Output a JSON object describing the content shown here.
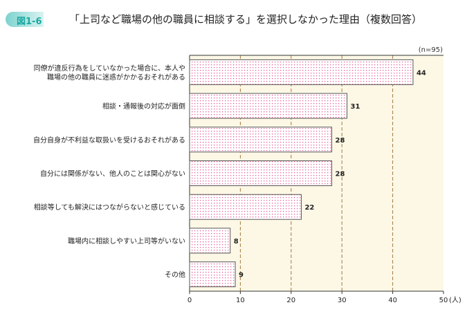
{
  "figure_label": "図1-6",
  "chart_data": {
    "type": "bar",
    "orientation": "horizontal",
    "title": "「上司など職場の他の職員に相談する」を選択しなかった理由（複数回答）",
    "note": "(n=95)",
    "unit": "(人)",
    "categories": [
      [
        "同僚が違反行為をしていなかった場合に、本人や",
        "職場の他の職員に迷惑がかかるおそれがある"
      ],
      [
        "相談・通報後の対応が面倒"
      ],
      [
        "自分自身が不利益な取扱いを受けるおそれがある"
      ],
      [
        "自分には関係がない、他人のことは関心がない"
      ],
      [
        "相談等しても解決にはつながらないと感じている"
      ],
      [
        "職場内に相談しやすい上司等がいない"
      ],
      [
        "その他"
      ]
    ],
    "values": [
      44,
      31,
      28,
      28,
      22,
      8,
      9
    ],
    "xlim": [
      0,
      50
    ],
    "xticks": [
      0,
      10,
      20,
      30,
      40,
      50
    ],
    "grid": true,
    "colors": {
      "bar_dot": "#e8609a",
      "bar_border": "#555555",
      "plot_bg": "#fdf8e6",
      "grid": "#a07840"
    }
  }
}
